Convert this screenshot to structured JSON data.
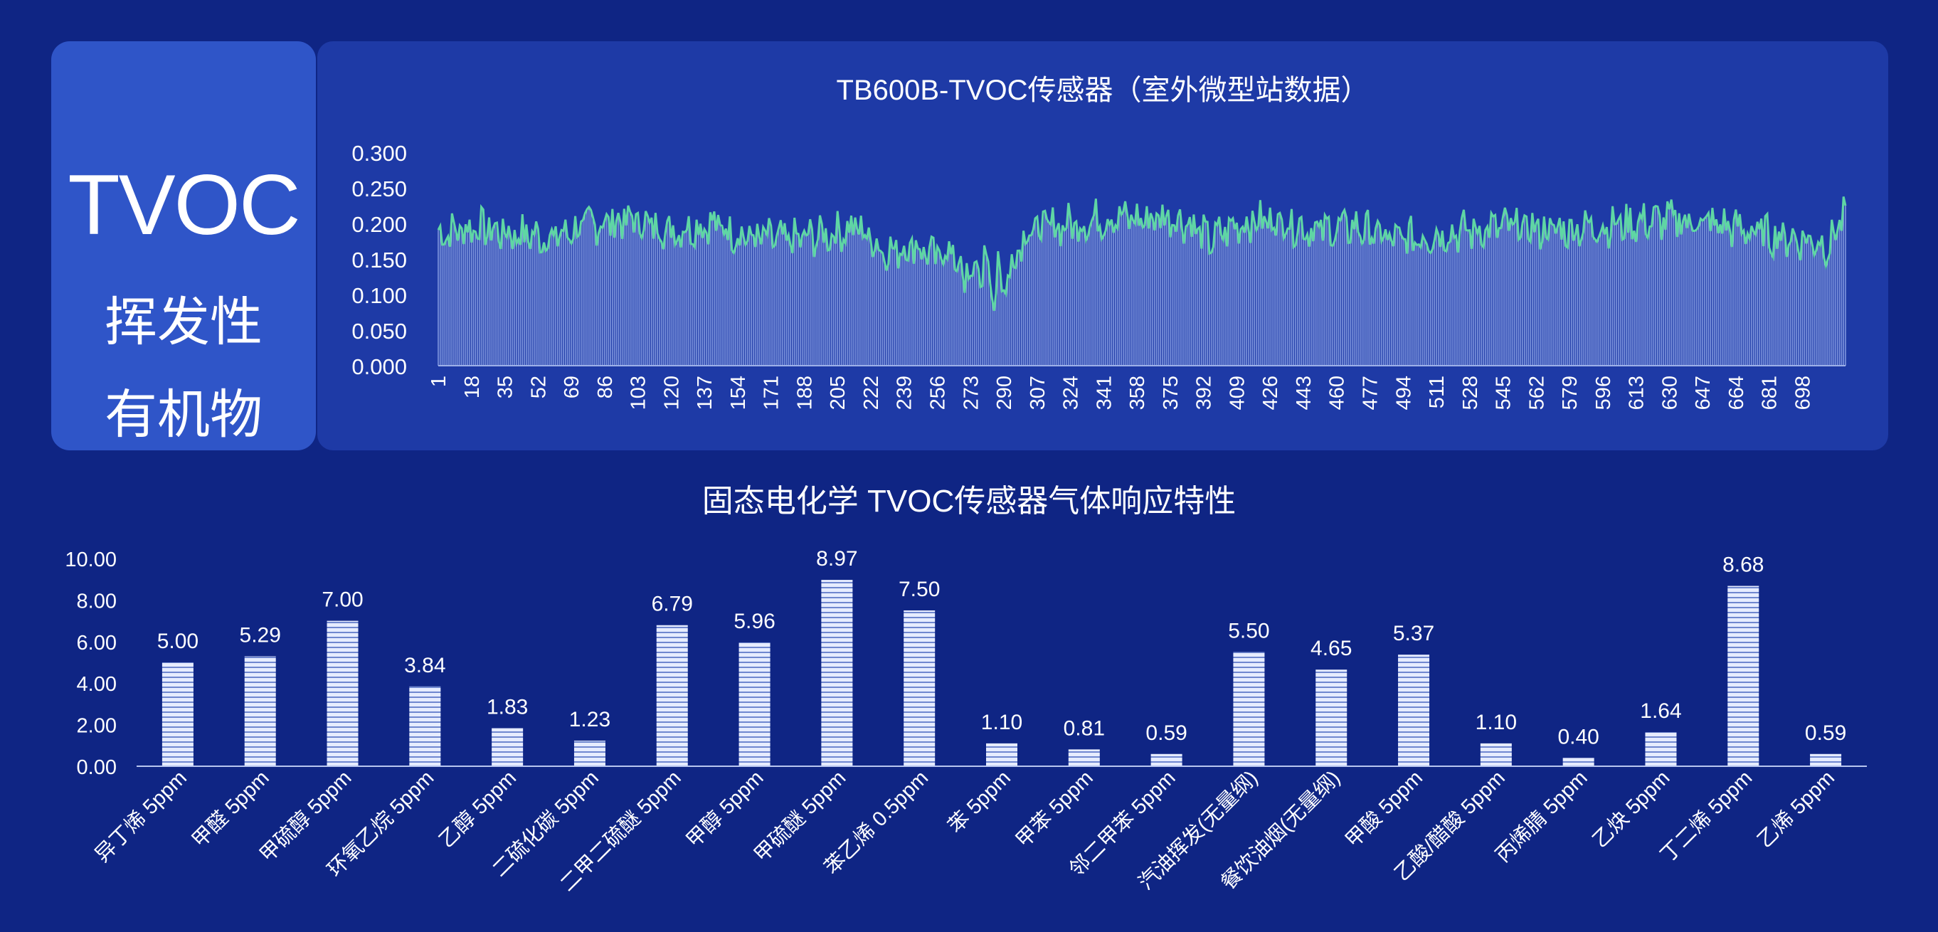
{
  "side": {
    "title": "TVOC",
    "subtitle_line1": "挥发性",
    "subtitle_line2": "有机物"
  },
  "colors": {
    "background": "#0f2584",
    "side_panel": "#2f55c8",
    "top_panel": "#1e3aa6",
    "line": "#5fd6a4",
    "bar_fill": "#dbe4ff",
    "bar_stripe": "#7e95d8"
  },
  "chart_data": [
    {
      "type": "line",
      "title": "TB600B-TVOC传感器（室外微型站数据）",
      "xlabel": "",
      "ylabel": "",
      "ylim": [
        0,
        0.3
      ],
      "y_ticks": [
        "0.000",
        "0.050",
        "0.100",
        "0.150",
        "0.200",
        "0.250",
        "0.300"
      ],
      "x_tick_labels": [
        "1",
        "18",
        "35",
        "52",
        "69",
        "86",
        "103",
        "120",
        "137",
        "154",
        "171",
        "188",
        "205",
        "222",
        "239",
        "256",
        "273",
        "290",
        "307",
        "324",
        "341",
        "358",
        "375",
        "392",
        "409",
        "426",
        "443",
        "460",
        "477",
        "494",
        "511",
        "528",
        "545",
        "562",
        "579",
        "596",
        "613",
        "630",
        "647",
        "664",
        "681",
        "698"
      ],
      "point_count": 720,
      "profile": {
        "x": [
          1,
          20,
          40,
          60,
          80,
          100,
          120,
          140,
          160,
          180,
          200,
          215,
          230,
          245,
          255,
          262,
          270,
          278,
          285,
          292,
          300,
          310,
          330,
          345,
          360,
          375,
          385,
          395,
          410,
          430,
          450,
          470,
          490,
          510,
          530,
          550,
          570,
          590,
          610,
          630,
          650,
          670,
          690,
          705,
          712,
          720
        ],
        "y": [
          0.185,
          0.195,
          0.185,
          0.18,
          0.2,
          0.205,
          0.19,
          0.2,
          0.18,
          0.175,
          0.185,
          0.195,
          0.16,
          0.17,
          0.15,
          0.165,
          0.12,
          0.14,
          0.115,
          0.13,
          0.185,
          0.195,
          0.2,
          0.21,
          0.205,
          0.21,
          0.2,
          0.175,
          0.2,
          0.205,
          0.19,
          0.195,
          0.175,
          0.185,
          0.19,
          0.195,
          0.19,
          0.195,
          0.2,
          0.205,
          0.2,
          0.19,
          0.18,
          0.175,
          0.17,
          0.22
        ]
      }
    },
    {
      "type": "bar",
      "title": "固态电化学 TVOC传感器气体响应特性",
      "xlabel": "",
      "ylabel": "",
      "ylim": [
        0,
        10
      ],
      "y_ticks": [
        "0.00",
        "2.00",
        "4.00",
        "6.00",
        "8.00",
        "10.00"
      ],
      "categories": [
        "异丁烯 5ppm",
        "甲醛 5ppm",
        "甲硫醇 5ppm",
        "环氧乙烷 5ppm",
        "乙醇 5ppm",
        "二硫化碳 5ppm",
        "二甲二硫醚 5ppm",
        "甲醇 5ppm",
        "甲硫醚 5ppm",
        "苯乙烯 0.5ppm",
        "苯 5ppm",
        "甲苯 5ppm",
        "邻二甲苯 5ppm",
        "汽油挥发(无量纲)",
        "餐饮油烟(无量纲)",
        "甲酸 5ppm",
        "乙酸/醋酸 5ppm",
        "丙烯腈 5ppm",
        "乙炔 5ppm",
        "丁二烯 5ppm",
        "乙烯 5ppm"
      ],
      "values": [
        5.0,
        5.29,
        7.0,
        3.84,
        1.83,
        1.23,
        6.79,
        5.96,
        8.97,
        7.5,
        1.1,
        0.81,
        0.59,
        5.5,
        4.65,
        5.37,
        1.1,
        0.4,
        1.64,
        8.68,
        0.59
      ],
      "value_labels": [
        "5.00",
        "5.29",
        "7.00",
        "3.84",
        "1.83",
        "1.23",
        "6.79",
        "5.96",
        "8.97",
        "7.50",
        "1.10",
        "0.81",
        "0.59",
        "5.50",
        "4.65",
        "5.37",
        "1.10",
        "0.40",
        "1.64",
        "8.68",
        "0.59"
      ]
    }
  ]
}
